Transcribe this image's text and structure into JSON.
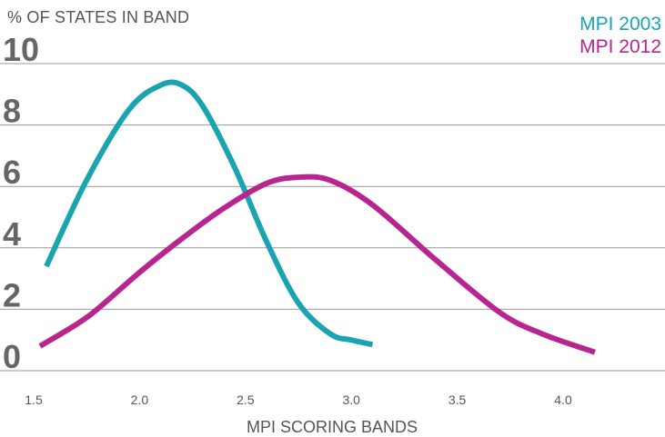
{
  "chart_data": {
    "type": "line",
    "title": "",
    "ylabel": "% OF STATES IN BAND",
    "xlabel": "MPI SCORING BANDS",
    "ylim": [
      0,
      10
    ],
    "yticks": [
      "0",
      "2",
      "4",
      "6",
      "8",
      "10"
    ],
    "xlim": [
      1.5,
      4.5
    ],
    "xticks": [
      "1.5",
      "2.0",
      "2.5",
      "3.0",
      "3.5",
      "4.0"
    ],
    "grid": true,
    "legend_position": "top-right",
    "series": [
      {
        "name": "MPI 2003",
        "color": "#1aa3b0",
        "x": [
          1.56,
          1.75,
          1.95,
          2.1,
          2.2,
          2.3,
          2.45,
          2.6,
          2.75,
          2.9,
          3.0,
          3.1
        ],
        "y": [
          3.4,
          6.2,
          8.5,
          9.3,
          9.3,
          8.6,
          6.6,
          4.2,
          2.2,
          1.2,
          1.0,
          0.85
        ]
      },
      {
        "name": "MPI 2012",
        "color": "#b82590",
        "x": [
          1.53,
          1.7,
          1.8,
          2.0,
          2.2,
          2.4,
          2.6,
          2.75,
          2.9,
          3.1,
          3.4,
          3.7,
          3.9,
          4.15
        ],
        "y": [
          0.8,
          1.5,
          2.0,
          3.2,
          4.3,
          5.3,
          6.1,
          6.3,
          6.2,
          5.4,
          3.6,
          1.9,
          1.2,
          0.6
        ]
      }
    ]
  }
}
